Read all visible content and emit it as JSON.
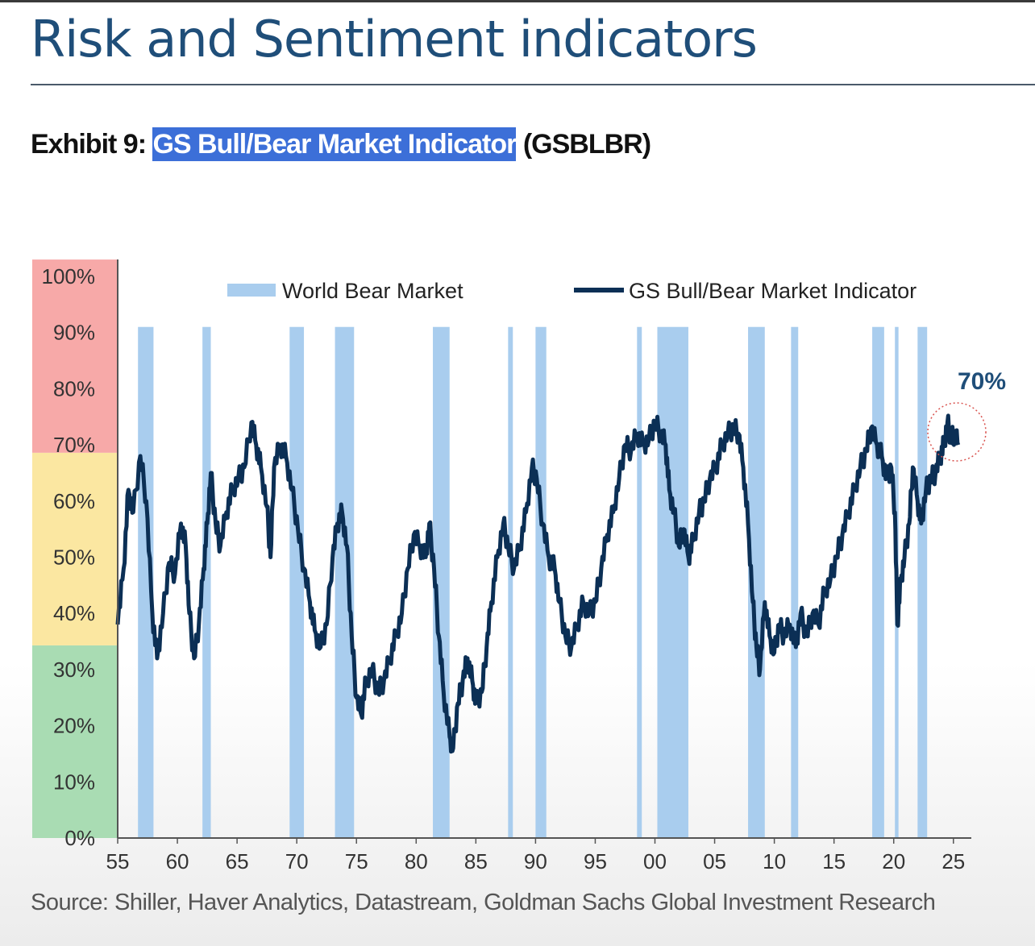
{
  "header": {
    "title": "Risk and Sentiment indicators"
  },
  "exhibit": {
    "prefix": "Exhibit 9: ",
    "highlighted": "GS Bull/Bear Market Indicator",
    "suffix": " (GSBLBR)"
  },
  "source": "Source: Shiller, Haver Analytics, Datastream, Goldman Sachs Global Investment Research",
  "colors": {
    "line": "#0b2f55",
    "bear_band": "#a9cdee",
    "zone_red": "#f7a9a8",
    "zone_yellow": "#fbe7a1",
    "zone_green": "#a9dcb3",
    "highlight": "#3c6fd8",
    "annotation_circle": "#d9534f"
  },
  "chart_data": {
    "type": "line",
    "xlim": [
      1955,
      2026.5
    ],
    "ylim": [
      0,
      100
    ],
    "x_ticks": [
      {
        "value": 1955,
        "label": "55"
      },
      {
        "value": 1960,
        "label": "60"
      },
      {
        "value": 1965,
        "label": "65"
      },
      {
        "value": 1970,
        "label": "70"
      },
      {
        "value": 1975,
        "label": "75"
      },
      {
        "value": 1980,
        "label": "80"
      },
      {
        "value": 1985,
        "label": "85"
      },
      {
        "value": 1990,
        "label": "90"
      },
      {
        "value": 1995,
        "label": "95"
      },
      {
        "value": 2000,
        "label": "00"
      },
      {
        "value": 2005,
        "label": "05"
      },
      {
        "value": 2010,
        "label": "10"
      },
      {
        "value": 2015,
        "label": "15"
      },
      {
        "value": 2020,
        "label": "20"
      },
      {
        "value": 2025,
        "label": "25"
      }
    ],
    "y_ticks": [
      {
        "value": 0,
        "label": "0%"
      },
      {
        "value": 10,
        "label": "10%"
      },
      {
        "value": 20,
        "label": "20%"
      },
      {
        "value": 30,
        "label": "30%"
      },
      {
        "value": 40,
        "label": "40%"
      },
      {
        "value": 50,
        "label": "50%"
      },
      {
        "value": 60,
        "label": "60%"
      },
      {
        "value": 70,
        "label": "70%"
      },
      {
        "value": 80,
        "label": "80%"
      },
      {
        "value": 90,
        "label": "90%"
      },
      {
        "value": 100,
        "label": "100%"
      }
    ],
    "zones": [
      {
        "from": 0,
        "to": 34.3,
        "color": "#a9dcb3"
      },
      {
        "from": 34.3,
        "to": 68.6,
        "color": "#fbe7a1"
      },
      {
        "from": 68.6,
        "to": 103,
        "color": "#f7a9a8"
      }
    ],
    "legend": {
      "position": "top",
      "items": [
        "World Bear Market",
        "GS Bull/Bear Market Indicator"
      ]
    },
    "bear_markets": {
      "name": "World Bear Market",
      "top": 91,
      "periods": [
        [
          1956.7,
          1958.0
        ],
        [
          1962.1,
          1962.8
        ],
        [
          1969.4,
          1970.6
        ],
        [
          1973.2,
          1974.8
        ],
        [
          1981.4,
          1982.8
        ],
        [
          1987.7,
          1988.1
        ],
        [
          1990.0,
          1990.9
        ],
        [
          1998.5,
          1998.9
        ],
        [
          2000.2,
          2002.8
        ],
        [
          2007.8,
          2009.2
        ],
        [
          2011.4,
          2012.0
        ],
        [
          2018.2,
          2019.2
        ],
        [
          2020.1,
          2020.4
        ],
        [
          2022.0,
          2022.8
        ]
      ]
    },
    "series": [
      {
        "name": "GS Bull/Bear Market Indicator",
        "points": [
          [
            1955.0,
            38
          ],
          [
            1955.5,
            48
          ],
          [
            1955.9,
            62
          ],
          [
            1956.3,
            58
          ],
          [
            1956.9,
            68
          ],
          [
            1957.4,
            60
          ],
          [
            1957.9,
            40
          ],
          [
            1958.3,
            32
          ],
          [
            1958.8,
            40
          ],
          [
            1959.3,
            49
          ],
          [
            1959.8,
            47
          ],
          [
            1960.3,
            56
          ],
          [
            1960.7,
            52
          ],
          [
            1961.0,
            40
          ],
          [
            1961.4,
            32
          ],
          [
            1961.8,
            38
          ],
          [
            1962.2,
            48
          ],
          [
            1962.5,
            56
          ],
          [
            1962.8,
            65
          ],
          [
            1963.2,
            56
          ],
          [
            1963.6,
            52
          ],
          [
            1964.1,
            58
          ],
          [
            1964.6,
            62
          ],
          [
            1965.1,
            64
          ],
          [
            1965.6,
            66
          ],
          [
            1966.2,
            74
          ],
          [
            1966.6,
            70
          ],
          [
            1967.0,
            66
          ],
          [
            1967.5,
            59
          ],
          [
            1967.8,
            50
          ],
          [
            1968.1,
            66
          ],
          [
            1968.6,
            70
          ],
          [
            1969.1,
            68
          ],
          [
            1969.6,
            62
          ],
          [
            1970.1,
            55
          ],
          [
            1970.6,
            48
          ],
          [
            1971.1,
            42
          ],
          [
            1971.5,
            37
          ],
          [
            1972.0,
            34
          ],
          [
            1972.5,
            38
          ],
          [
            1973.0,
            50
          ],
          [
            1973.4,
            56
          ],
          [
            1973.8,
            58
          ],
          [
            1974.2,
            52
          ],
          [
            1974.6,
            36
          ],
          [
            1975.0,
            25
          ],
          [
            1975.4,
            22
          ],
          [
            1975.8,
            28
          ],
          [
            1976.3,
            30
          ],
          [
            1976.8,
            26
          ],
          [
            1977.3,
            28
          ],
          [
            1977.8,
            32
          ],
          [
            1978.3,
            36
          ],
          [
            1978.8,
            40
          ],
          [
            1979.3,
            48
          ],
          [
            1979.8,
            54
          ],
          [
            1980.3,
            52
          ],
          [
            1980.8,
            50
          ],
          [
            1981.1,
            56
          ],
          [
            1981.5,
            48
          ],
          [
            1981.9,
            36
          ],
          [
            1982.3,
            26
          ],
          [
            1982.8,
            18
          ],
          [
            1983.1,
            16
          ],
          [
            1983.5,
            24
          ],
          [
            1983.9,
            28
          ],
          [
            1984.3,
            32
          ],
          [
            1984.7,
            28
          ],
          [
            1985.0,
            24
          ],
          [
            1985.5,
            26
          ],
          [
            1985.9,
            34
          ],
          [
            1986.3,
            42
          ],
          [
            1986.8,
            50
          ],
          [
            1987.3,
            56
          ],
          [
            1987.7,
            52
          ],
          [
            1988.2,
            48
          ],
          [
            1988.7,
            52
          ],
          [
            1989.2,
            58
          ],
          [
            1989.7,
            66
          ],
          [
            1990.1,
            64
          ],
          [
            1990.6,
            56
          ],
          [
            1991.1,
            50
          ],
          [
            1991.6,
            48
          ],
          [
            1992.0,
            42
          ],
          [
            1992.5,
            36
          ],
          [
            1993.0,
            34
          ],
          [
            1993.5,
            38
          ],
          [
            1994.0,
            42
          ],
          [
            1994.5,
            40
          ],
          [
            1995.0,
            42
          ],
          [
            1995.5,
            48
          ],
          [
            1996.0,
            54
          ],
          [
            1996.5,
            58
          ],
          [
            1997.0,
            64
          ],
          [
            1997.5,
            70
          ],
          [
            1998.0,
            69
          ],
          [
            1998.5,
            72
          ],
          [
            1999.0,
            70
          ],
          [
            1999.5,
            71
          ],
          [
            2000.0,
            74
          ],
          [
            2000.5,
            72
          ],
          [
            2000.9,
            70
          ],
          [
            2001.2,
            62
          ],
          [
            2001.6,
            58
          ],
          [
            2002.0,
            52
          ],
          [
            2002.4,
            55
          ],
          [
            2002.8,
            50
          ],
          [
            2003.2,
            53
          ],
          [
            2003.7,
            58
          ],
          [
            2004.1,
            60
          ],
          [
            2004.6,
            64
          ],
          [
            2005.1,
            66
          ],
          [
            2005.6,
            70
          ],
          [
            2006.1,
            72
          ],
          [
            2006.6,
            73
          ],
          [
            2007.0,
            72
          ],
          [
            2007.4,
            66
          ],
          [
            2007.8,
            56
          ],
          [
            2008.2,
            42
          ],
          [
            2008.5,
            34
          ],
          [
            2008.8,
            30
          ],
          [
            2009.2,
            42
          ],
          [
            2009.6,
            36
          ],
          [
            2010.0,
            33
          ],
          [
            2010.4,
            38
          ],
          [
            2010.8,
            36
          ],
          [
            2011.3,
            38
          ],
          [
            2011.8,
            34
          ],
          [
            2012.2,
            40
          ],
          [
            2012.7,
            36
          ],
          [
            2013.2,
            40
          ],
          [
            2013.7,
            38
          ],
          [
            2014.2,
            44
          ],
          [
            2014.7,
            46
          ],
          [
            2015.2,
            50
          ],
          [
            2015.7,
            54
          ],
          [
            2016.2,
            58
          ],
          [
            2016.7,
            62
          ],
          [
            2017.2,
            66
          ],
          [
            2017.7,
            69
          ],
          [
            2018.1,
            73
          ],
          [
            2018.6,
            70
          ],
          [
            2019.0,
            68
          ],
          [
            2019.4,
            64
          ],
          [
            2019.8,
            66
          ],
          [
            2020.1,
            58
          ],
          [
            2020.3,
            38
          ],
          [
            2020.6,
            46
          ],
          [
            2020.9,
            50
          ],
          [
            2021.3,
            56
          ],
          [
            2021.6,
            66
          ],
          [
            2022.0,
            60
          ],
          [
            2022.3,
            56
          ],
          [
            2022.7,
            62
          ],
          [
            2023.1,
            64
          ],
          [
            2023.5,
            65
          ],
          [
            2023.9,
            68
          ],
          [
            2024.2,
            70
          ],
          [
            2024.5,
            74
          ],
          [
            2024.8,
            71
          ],
          [
            2025.1,
            72
          ],
          [
            2025.4,
            70
          ]
        ]
      }
    ],
    "annotation": {
      "label": "70%",
      "x": 2025.3,
      "y": 71
    }
  }
}
